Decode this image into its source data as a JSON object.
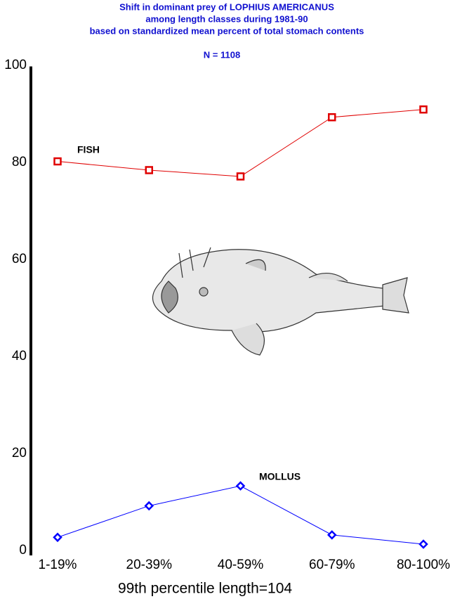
{
  "chart_data": {
    "type": "line",
    "title": [
      "Shift in dominant prey of LOPHIUS AMERICANUS",
      "among length classes during 1981-90",
      "based on standardized mean percent of  total stomach contents"
    ],
    "subtitle": "N = 1108",
    "x_label": "99th percentile  length=104",
    "categories": [
      "1-19%",
      "20-39%",
      "40-59%",
      "60-79%",
      "80-100%"
    ],
    "series": [
      {
        "name": "FISH",
        "color": "#e00000",
        "marker": "square",
        "values": [
          80.5,
          78.7,
          77.4,
          89.6,
          91.2
        ]
      },
      {
        "name": "MOLLUS",
        "color": "#0000ff",
        "marker": "diamond",
        "values": [
          3.0,
          9.5,
          13.6,
          3.5,
          1.6
        ]
      }
    ],
    "ylim": [
      0,
      100
    ],
    "yticks": [
      0,
      20,
      40,
      60,
      80,
      100
    ],
    "grid": false
  }
}
